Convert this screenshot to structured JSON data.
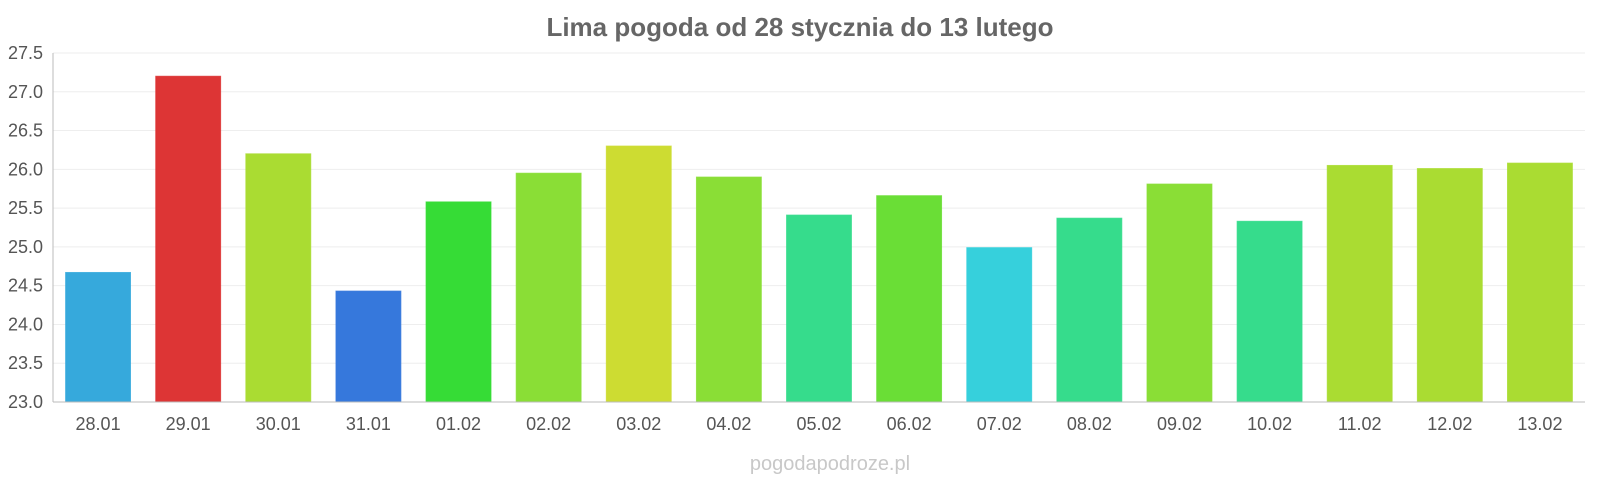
{
  "chart_data": {
    "type": "bar",
    "title": "Lima pogoda od 28 stycznia do 13 lutego",
    "xlabel": "",
    "ylabel": "",
    "ylim": [
      23.0,
      27.5
    ],
    "yticks": [
      "23.0",
      "23.5",
      "24.0",
      "24.5",
      "25.0",
      "25.5",
      "26.0",
      "26.5",
      "27.0",
      "27.5"
    ],
    "grid": true,
    "categories": [
      "28.01",
      "29.01",
      "30.01",
      "31.01",
      "01.02",
      "02.02",
      "03.02",
      "04.02",
      "05.02",
      "06.02",
      "07.02",
      "08.02",
      "09.02",
      "10.02",
      "11.02",
      "12.02",
      "13.02"
    ],
    "values": [
      24.67,
      27.2,
      26.2,
      24.43,
      25.58,
      25.95,
      26.3,
      25.9,
      25.41,
      25.66,
      24.99,
      25.37,
      25.81,
      25.33,
      26.05,
      26.01,
      26.08
    ],
    "colors": [
      "#36a9dc",
      "#dd3535",
      "#aadc32",
      "#3678dc",
      "#36dc36",
      "#8ade36",
      "#cddc32",
      "#8ade36",
      "#36dc8c",
      "#6ade36",
      "#36d0dc",
      "#36dc8c",
      "#8ade36",
      "#36dc8c",
      "#aadc32",
      "#aadc32",
      "#aadc32"
    ]
  },
  "watermark": "pogodapodroze.pl"
}
